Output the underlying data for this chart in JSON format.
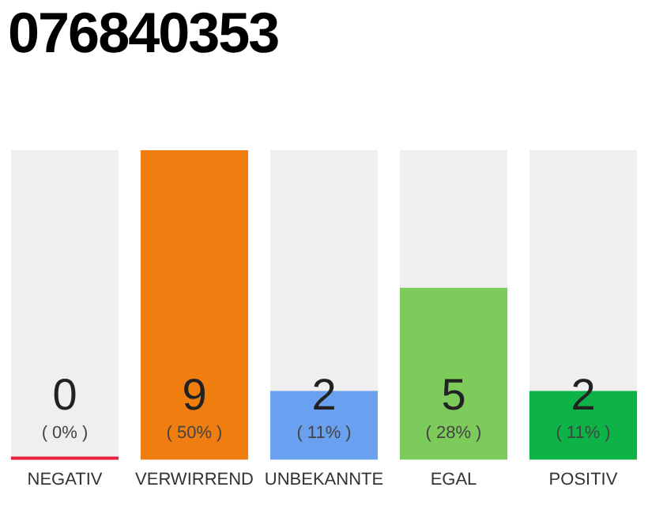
{
  "chart_data": {
    "type": "bar",
    "title": "076840353",
    "categories": [
      "NEGATIV",
      "VERWIRREND",
      "UNBEKANNTE",
      "EGAL",
      "POSITIV"
    ],
    "values": [
      0,
      9,
      2,
      5,
      2
    ],
    "colors": [
      "#e8213f",
      "#f07d10",
      "#6aa0f0",
      "#7dcb5a",
      "#0db346"
    ],
    "tick_labels": "x",
    "grid": false,
    "legend": false,
    "data_labels": true,
    "annotations": [
      "( 0% )",
      "( 50% )",
      "( 11% )",
      "( 28% )",
      "( 11% )"
    ]
  }
}
